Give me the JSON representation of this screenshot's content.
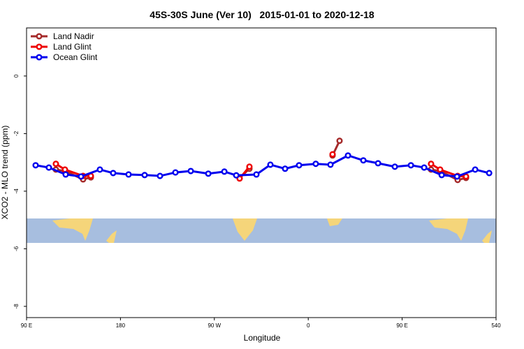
{
  "chart_data": {
    "type": "line",
    "title": "45S-30S June (Ver 10)   2015-01-01 to 2020-12-18",
    "x_label": "Longitude",
    "y_label": "XCO2 - MLO trend (ppm)",
    "xlim": [
      90,
      540
    ],
    "ylim": [
      -8.39,
      1.67
    ],
    "xticks": [
      {
        "value": 90,
        "label": "90 E"
      },
      180,
      {
        "value": 270,
        "label": "90 W"
      },
      {
        "value": 360,
        "label": "0"
      },
      {
        "value": 450,
        "label": "90 E"
      },
      540
    ],
    "yticks": [
      -8,
      -6,
      -4,
      -2,
      0
    ],
    "legend": "top-left",
    "series": [
      {
        "name": "Land Nadir",
        "color": "#a52a2a",
        "x": [
          118.1,
          126.8,
          144.2,
          151.6,
          null,
          294.2,
          303.6,
          null,
          383.3,
          390.0,
          null,
          477.7,
          486.4,
          503.2,
          511.2
        ],
        "values": [
          -3.25,
          -3.3,
          -3.59,
          -3.52,
          null,
          -3.54,
          -3.22,
          null,
          -2.76,
          -2.25,
          null,
          -3.25,
          -3.3,
          -3.61,
          -3.54
        ]
      },
      {
        "name": "Land Glint",
        "color": "#ee0000",
        "x": [
          118.1,
          126.8,
          144.2,
          151.6,
          null,
          294.2,
          303.6,
          null,
          383.3,
          null,
          477.7,
          486.4,
          503.2,
          511.2
        ],
        "values": [
          -3.05,
          -3.25,
          -3.47,
          -3.47,
          null,
          -3.56,
          -3.15,
          null,
          -2.72,
          null,
          -3.05,
          -3.25,
          -3.47,
          -3.49
        ]
      },
      {
        "name": "Ocean Glint",
        "color": "#0000ee",
        "x": [
          98.7,
          111.4,
          127.5,
          142.2,
          160.3,
          173.0,
          187.8,
          203.2,
          217.9,
          232.7,
          247.4,
          264.2,
          279.6,
          291.0,
          310.3,
          323.7,
          337.8,
          351.2,
          367.2,
          381.3,
          398.1,
          412.8,
          426.9,
          443.0,
          458.4,
          471.1,
          487.9,
          502.6,
          520.0,
          533.4
        ],
        "values": [
          -3.1,
          -3.18,
          -3.42,
          -3.49,
          -3.25,
          -3.37,
          -3.42,
          -3.44,
          -3.47,
          -3.35,
          -3.3,
          -3.39,
          -3.32,
          -3.45,
          -3.42,
          -3.08,
          -3.22,
          -3.1,
          -3.05,
          -3.08,
          -2.76,
          -2.93,
          -3.03,
          -3.15,
          -3.1,
          -3.18,
          -3.44,
          -3.49,
          -3.25,
          -3.37
        ]
      }
    ]
  }
}
